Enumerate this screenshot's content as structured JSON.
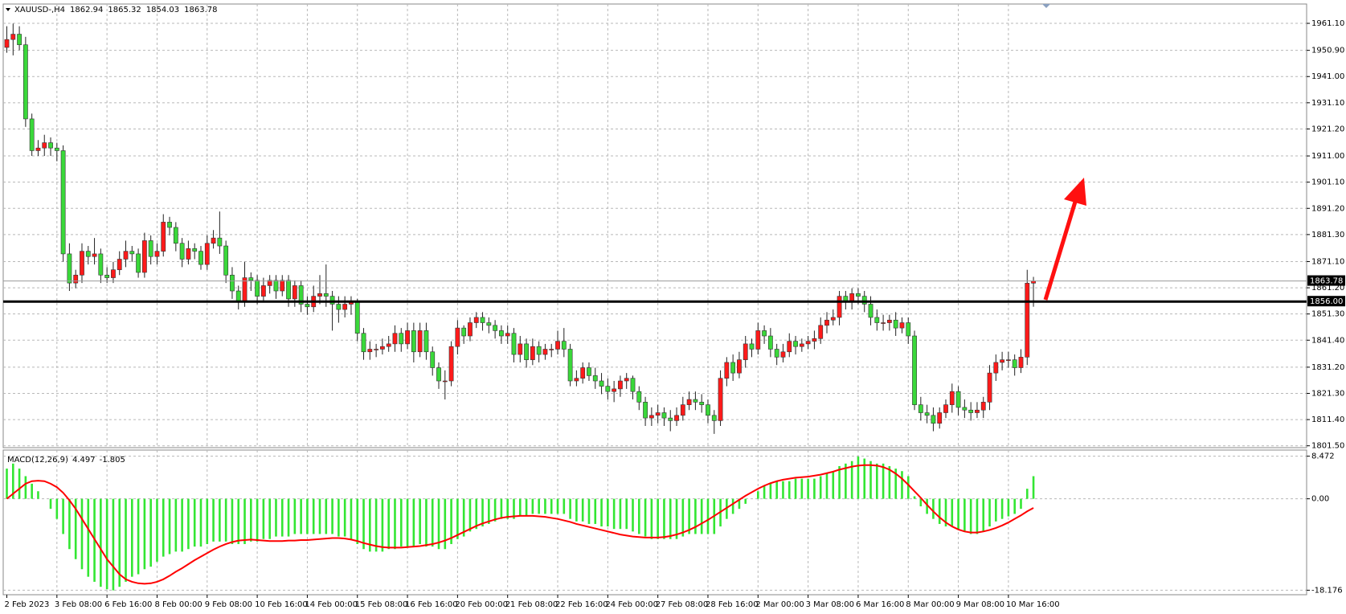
{
  "chart_data": [
    {
      "type": "candlestick",
      "symbol": "XAUUSD-,H4",
      "categories": [
        "2 Feb 2023",
        null,
        null,
        null,
        null,
        null,
        null,
        null,
        "3 Feb 08:00",
        null,
        null,
        null,
        null,
        null,
        null,
        null,
        "6 Feb 16:00",
        null,
        null,
        null,
        null,
        null,
        null,
        null,
        "8 Feb 00:00",
        null,
        null,
        null,
        null,
        null,
        null,
        null,
        "9 Feb 08:00",
        null,
        null,
        null,
        null,
        null,
        null,
        null,
        "10 Feb 16:00",
        null,
        null,
        null,
        null,
        null,
        null,
        null,
        "14 Feb 00:00",
        null,
        null,
        null,
        null,
        null,
        null,
        null,
        "15 Feb 08:00",
        null,
        null,
        null,
        null,
        null,
        null,
        null,
        "16 Feb 16:00",
        null,
        null,
        null,
        null,
        null,
        null,
        null,
        "20 Feb 00:00",
        null,
        null,
        null,
        null,
        null,
        null,
        null,
        "21 Feb 08:00",
        null,
        null,
        null,
        null,
        null,
        null,
        null,
        "22 Feb 16:00",
        null,
        null,
        null,
        null,
        null,
        null,
        null,
        "24 Feb 00:00",
        null,
        null,
        null,
        null,
        null,
        null,
        null,
        "27 Feb 08:00",
        null,
        null,
        null,
        null,
        null,
        null,
        null,
        "28 Feb 16:00",
        null,
        null,
        null,
        null,
        null,
        null,
        null,
        "2 Mar 00:00",
        null,
        null,
        null,
        null,
        null,
        null,
        null,
        "3 Mar 08:00",
        null,
        null,
        null,
        null,
        null,
        null,
        null,
        "6 Mar 16:00",
        null,
        null,
        null,
        null,
        null,
        null,
        null,
        "8 Mar 00:00",
        null,
        null,
        null,
        null,
        null,
        null,
        null,
        "9 Mar 08:00",
        null,
        null,
        null,
        null,
        null,
        null,
        null,
        "10 Mar 16:00",
        null,
        null,
        null,
        null
      ],
      "open": [
        1952,
        1955,
        1957,
        1953,
        1925,
        1913,
        1914,
        1916,
        1914,
        1913,
        1874,
        1863,
        1866,
        1875,
        1873,
        1874,
        1866,
        1865,
        1868,
        1872,
        1875,
        1874,
        1867,
        1879,
        1873,
        1875,
        1886,
        1884,
        1878,
        1872,
        1876,
        1875,
        1870,
        1878,
        1880,
        1877,
        1866,
        1860,
        1856,
        1865,
        1864,
        1858,
        1862,
        1864,
        1860,
        1864,
        1857,
        1862,
        1855,
        1854,
        1858,
        1859,
        1858,
        1855,
        1853,
        1855,
        1856,
        1844,
        1837,
        1838,
        1838,
        1839,
        1840,
        1844,
        1840,
        1845,
        1837,
        1845,
        1837,
        1831,
        1826,
        1826,
        1839,
        1846,
        1843,
        1848,
        1850,
        1848,
        1847,
        1845,
        1843,
        1844,
        1836,
        1840,
        1834,
        1839,
        1836,
        1838,
        1838,
        1841,
        1838,
        1826,
        1827,
        1831,
        1828,
        1826,
        1824,
        1822,
        1823,
        1826,
        1827,
        1822,
        1818,
        1812,
        1813,
        1814,
        1812,
        1811,
        1813,
        1817,
        1819,
        1818,
        1817,
        1813,
        1811,
        1827,
        1833,
        1829,
        1834,
        1840,
        1838,
        1845,
        1843,
        1838,
        1835,
        1837,
        1841,
        1839,
        1840,
        1841,
        1842,
        1847,
        1849,
        1850,
        1858,
        1856,
        1859,
        1858,
        1855,
        1850,
        1848,
        1848,
        1849,
        1846,
        1848,
        1843,
        1817,
        1814,
        1813,
        1810,
        1814,
        1817,
        1822,
        1816,
        1815,
        1814,
        1815,
        1818,
        1829,
        1833,
        1834,
        1834,
        1831,
        1835,
        1862.94
      ],
      "high": [
        1960,
        1961,
        1960,
        1956,
        1927,
        1917,
        1919,
        1918,
        1916,
        1915,
        1878,
        1868,
        1878,
        1877,
        1880,
        1876,
        1869,
        1871,
        1875,
        1879,
        1877,
        1876,
        1882,
        1881,
        1878,
        1889,
        1888,
        1886,
        1880,
        1879,
        1878,
        1877,
        1881,
        1883,
        1890,
        1879,
        1869,
        1862,
        1871,
        1867,
        1866,
        1865,
        1866,
        1866,
        1866,
        1866,
        1864,
        1864,
        1858,
        1862,
        1866,
        1870,
        1860,
        1858,
        1858,
        1858,
        1857,
        1846,
        1841,
        1840,
        1842,
        1843,
        1847,
        1846,
        1848,
        1848,
        1848,
        1848,
        1839,
        1833,
        1830,
        1841,
        1849,
        1847,
        1850,
        1852,
        1852,
        1850,
        1849,
        1847,
        1847,
        1846,
        1843,
        1842,
        1842,
        1841,
        1840,
        1840,
        1845,
        1846,
        1840,
        1830,
        1833,
        1833,
        1831,
        1829,
        1827,
        1826,
        1828,
        1829,
        1828,
        1824,
        1820,
        1816,
        1817,
        1816,
        1815,
        1816,
        1820,
        1822,
        1822,
        1821,
        1819,
        1815,
        1830,
        1835,
        1836,
        1837,
        1843,
        1842,
        1848,
        1847,
        1846,
        1840,
        1840,
        1844,
        1843,
        1842,
        1843,
        1845,
        1850,
        1852,
        1853,
        1860,
        1860,
        1861,
        1861,
        1860,
        1858,
        1853,
        1851,
        1851,
        1852,
        1850,
        1850,
        1845,
        1820,
        1817,
        1816,
        1816,
        1819,
        1825,
        1824,
        1819,
        1818,
        1818,
        1820,
        1832,
        1836,
        1837,
        1837,
        1836,
        1838,
        1868,
        1865.32
      ],
      "low": [
        1950,
        1949,
        1951,
        1922,
        1911,
        1911,
        1911,
        1911,
        1909,
        1871,
        1860,
        1861,
        1863,
        1870,
        1870,
        1863,
        1863,
        1863,
        1866,
        1869,
        1871,
        1865,
        1865,
        1870,
        1870,
        1873,
        1881,
        1875,
        1869,
        1870,
        1872,
        1868,
        1868,
        1876,
        1874,
        1863,
        1857,
        1853,
        1854,
        1860,
        1855,
        1856,
        1859,
        1857,
        1858,
        1854,
        1854,
        1852,
        1851,
        1852,
        1855,
        1854,
        1845,
        1848,
        1850,
        1851,
        1841,
        1834,
        1834,
        1835,
        1836,
        1837,
        1837,
        1837,
        1838,
        1833,
        1835,
        1834,
        1828,
        1823,
        1819,
        1824,
        1836,
        1840,
        1841,
        1846,
        1845,
        1844,
        1842,
        1840,
        1840,
        1833,
        1833,
        1831,
        1832,
        1833,
        1834,
        1835,
        1836,
        1835,
        1824,
        1824,
        1825,
        1826,
        1823,
        1821,
        1819,
        1818,
        1820,
        1823,
        1819,
        1815,
        1809,
        1809,
        1810,
        1809,
        1807,
        1809,
        1811,
        1815,
        1815,
        1814,
        1810,
        1806,
        1809,
        1824,
        1826,
        1827,
        1831,
        1835,
        1836,
        1840,
        1835,
        1832,
        1833,
        1835,
        1836,
        1837,
        1838,
        1838,
        1840,
        1844,
        1847,
        1847,
        1853,
        1853,
        1855,
        1852,
        1847,
        1845,
        1845,
        1845,
        1843,
        1844,
        1840,
        1815,
        1811,
        1810,
        1807,
        1808,
        1812,
        1814,
        1813,
        1812,
        1811,
        1812,
        1812,
        1815,
        1826,
        1830,
        1831,
        1828,
        1829,
        1832,
        1854.03
      ],
      "close": [
        1955,
        1957,
        1953,
        1925,
        1913,
        1914,
        1916,
        1914,
        1913,
        1874,
        1863,
        1866,
        1875,
        1873,
        1874,
        1866,
        1865,
        1868,
        1872,
        1875,
        1874,
        1867,
        1879,
        1873,
        1875,
        1886,
        1884,
        1878,
        1872,
        1876,
        1875,
        1870,
        1878,
        1880,
        1877,
        1866,
        1860,
        1856,
        1865,
        1864,
        1858,
        1862,
        1864,
        1860,
        1864,
        1857,
        1862,
        1855,
        1854,
        1858,
        1859,
        1858,
        1855,
        1853,
        1855,
        1856,
        1844,
        1837,
        1838,
        1838,
        1839,
        1840,
        1844,
        1840,
        1845,
        1837,
        1845,
        1837,
        1831,
        1826,
        1826,
        1839,
        1846,
        1843,
        1848,
        1850,
        1848,
        1847,
        1845,
        1843,
        1844,
        1836,
        1840,
        1834,
        1839,
        1836,
        1838,
        1838,
        1841,
        1838,
        1826,
        1827,
        1831,
        1828,
        1826,
        1824,
        1822,
        1823,
        1826,
        1827,
        1822,
        1818,
        1812,
        1813,
        1814,
        1812,
        1811,
        1813,
        1817,
        1819,
        1818,
        1817,
        1813,
        1811,
        1827,
        1833,
        1829,
        1834,
        1840,
        1838,
        1845,
        1843,
        1838,
        1835,
        1837,
        1841,
        1839,
        1840,
        1841,
        1842,
        1847,
        1849,
        1850,
        1858,
        1856,
        1859,
        1858,
        1855,
        1850,
        1848,
        1848,
        1849,
        1846,
        1848,
        1843,
        1817,
        1814,
        1813,
        1810,
        1814,
        1817,
        1822,
        1816,
        1815,
        1814,
        1815,
        1818,
        1829,
        1833,
        1834,
        1834,
        1831,
        1835,
        1862.94,
        1863.78
      ],
      "up_color": "#ff1a1a",
      "down_color": "#3ad83a",
      "ylim": [
        1800.8,
        1968.4
      ],
      "yticks": [
        {
          "value": 1961.1,
          "label": "1961.10"
        },
        {
          "value": 1950.9,
          "label": "1950.90"
        },
        {
          "value": 1941,
          "label": "1941.00"
        },
        {
          "value": 1931.1,
          "label": "1931.10"
        },
        {
          "value": 1921.2,
          "label": "1921.20"
        },
        {
          "value": 1911,
          "label": "1911.00"
        },
        {
          "value": 1901.1,
          "label": "1901.10"
        },
        {
          "value": 1891.2,
          "label": "1891.20"
        },
        {
          "value": 1881.3,
          "label": "1881.30"
        },
        {
          "value": 1871.1,
          "label": "1871.10"
        },
        {
          "value": 1861.2,
          "label": "1861.20"
        },
        {
          "value": 1851.3,
          "label": "1851.30"
        },
        {
          "value": 1841.4,
          "label": "1841.40"
        },
        {
          "value": 1831.2,
          "label": "1831.20"
        },
        {
          "value": 1821.3,
          "label": "1821.30"
        },
        {
          "value": 1811.4,
          "label": "1811.40"
        },
        {
          "value": 1801.5,
          "label": "1801.50"
        }
      ],
      "hline": {
        "value": 1856,
        "label": "1856.00",
        "color": "#000000"
      },
      "grid": true
    },
    {
      "type": "macd",
      "label": "MACD(12,26,9)",
      "histogram": [
        6,
        7,
        6,
        4.5,
        3,
        1.5,
        0,
        -2,
        -4,
        -7,
        -10,
        -12,
        -14,
        -15.5,
        -16.5,
        -17.5,
        -18,
        -18.2,
        -17.5,
        -16.5,
        -15.5,
        -15,
        -14,
        -13.5,
        -12.5,
        -11.5,
        -11,
        -10.5,
        -10.5,
        -10,
        -9.5,
        -9.5,
        -9,
        -8.5,
        -8.5,
        -8.5,
        -9,
        -9,
        -9,
        -8.5,
        -8.5,
        -8,
        -8,
        -7.5,
        -7.5,
        -7.5,
        -7,
        -7,
        -7,
        -7,
        -7,
        -7,
        -7,
        -7.5,
        -7.5,
        -8,
        -9,
        -10,
        -10.5,
        -10.5,
        -10.5,
        -10,
        -10,
        -9.5,
        -9.5,
        -9.5,
        -9,
        -9.5,
        -9.5,
        -10,
        -10,
        -9,
        -8,
        -7.5,
        -6.5,
        -6,
        -5.5,
        -5,
        -4.5,
        -4,
        -4,
        -4,
        -3.5,
        -3.5,
        -3,
        -3,
        -3,
        -3,
        -3,
        -3,
        -4,
        -4.5,
        -4.5,
        -5,
        -5,
        -5.5,
        -5.5,
        -6,
        -6,
        -6,
        -6.5,
        -7,
        -7.5,
        -8,
        -8,
        -8,
        -8,
        -8,
        -7.5,
        -7,
        -7,
        -7,
        -7,
        -7,
        -5.5,
        -4,
        -3,
        -2,
        -1,
        0,
        1.5,
        2.5,
        3,
        3.5,
        3.5,
        3.5,
        4,
        4,
        4,
        4,
        4.5,
        5,
        5.5,
        6.5,
        7,
        7.5,
        8.4,
        8,
        7.5,
        7,
        7,
        6.5,
        6,
        5.5,
        4.5,
        0.5,
        -1.5,
        -3,
        -4,
        -5,
        -5.5,
        -5.5,
        -6,
        -6.5,
        -7,
        -7,
        -6.5,
        -5.5,
        -4.5,
        -4,
        -3.5,
        -3,
        -2,
        2,
        4.497
      ],
      "signal": [
        0,
        1,
        2,
        3,
        3.5,
        3.6,
        3.5,
        3,
        2.3,
        1.2,
        -0.3,
        -2,
        -4,
        -6,
        -8,
        -10,
        -12,
        -13.5,
        -15,
        -16,
        -16.5,
        -16.8,
        -16.9,
        -16.8,
        -16.5,
        -16,
        -15.3,
        -14.5,
        -13.8,
        -13,
        -12.2,
        -11.5,
        -10.8,
        -10.1,
        -9.5,
        -9,
        -8.6,
        -8.3,
        -8.2,
        -8.1,
        -8.2,
        -8.3,
        -8.4,
        -8.4,
        -8.4,
        -8.3,
        -8.3,
        -8.2,
        -8.2,
        -8.1,
        -8,
        -7.9,
        -7.8,
        -7.8,
        -7.9,
        -8.1,
        -8.4,
        -8.8,
        -9.1,
        -9.4,
        -9.6,
        -9.7,
        -9.7,
        -9.7,
        -9.6,
        -9.5,
        -9.4,
        -9.2,
        -9,
        -8.7,
        -8.3,
        -7.8,
        -7.2,
        -6.6,
        -6,
        -5.4,
        -4.9,
        -4.5,
        -4.1,
        -3.8,
        -3.6,
        -3.5,
        -3.4,
        -3.4,
        -3.4,
        -3.5,
        -3.6,
        -3.8,
        -4,
        -4.3,
        -4.6,
        -5,
        -5.3,
        -5.6,
        -5.9,
        -6.2,
        -6.5,
        -6.8,
        -7.1,
        -7.3,
        -7.5,
        -7.6,
        -7.7,
        -7.7,
        -7.7,
        -7.6,
        -7.4,
        -7.1,
        -6.7,
        -6.2,
        -5.6,
        -4.9,
        -4.2,
        -3.4,
        -2.6,
        -1.8,
        -1,
        -0.2,
        0.6,
        1.3,
        2,
        2.6,
        3.1,
        3.5,
        3.8,
        4,
        4.2,
        4.3,
        4.4,
        4.6,
        4.8,
        5.1,
        5.4,
        5.8,
        6.1,
        6.4,
        6.6,
        6.7,
        6.7,
        6.6,
        6.3,
        5.8,
        5,
        4,
        2.8,
        1.5,
        0.2,
        -1.2,
        -2.5,
        -3.7,
        -4.7,
        -5.5,
        -6.1,
        -6.5,
        -6.7,
        -6.7,
        -6.5,
        -6.2,
        -5.8,
        -5.3,
        -4.7,
        -4,
        -3.3,
        -2.5,
        -1.805
      ],
      "histogram_color": "#33e633",
      "signal_color": "#ff0000",
      "ylim": [
        -19.07,
        9.69
      ],
      "yticks": [
        {
          "value": 8.472,
          "label": "8.472"
        },
        {
          "value": 0,
          "label": "0.00"
        },
        {
          "value": -18.176,
          "label": "-18.176"
        }
      ],
      "grid": true
    }
  ]
}
